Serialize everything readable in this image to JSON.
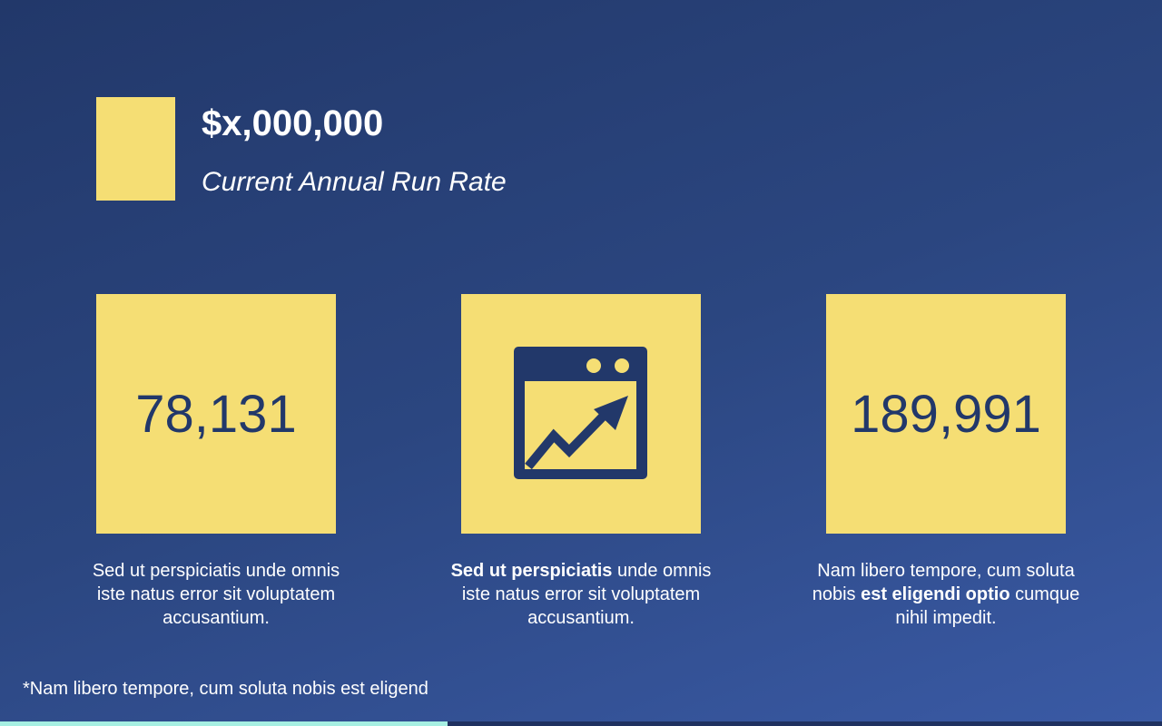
{
  "header": {
    "amount": "$x,000,000",
    "subtitle": "Current Annual Run Rate"
  },
  "cards": [
    {
      "value": "78,131",
      "desc": [
        {
          "text": "Sed ut perspiciatis unde omnis iste natus error sit voluptatem accusantium.",
          "bold": false
        }
      ]
    },
    {
      "icon": "chart-growth-window-icon",
      "desc_bold": "Sed ut perspiciatis",
      "desc_rest": " unde omnis iste natus error sit voluptatem accusantium."
    },
    {
      "value": "189,991",
      "desc_a": "Nam libero tempore, cum soluta nobis ",
      "desc_bold": "est eligendi optio",
      "desc_b": " cumque nihil impedit."
    }
  ],
  "card1_desc": "Sed ut perspiciatis unde omnis iste natus error sit voluptatem accusantium.",
  "footnote": "*Nam libero tempore, cum soluta nobis est eligend",
  "progress_percent": 38.5,
  "colors": {
    "accent": "#f5de74",
    "navy": "#22386a",
    "progress": "#a6efe2"
  }
}
